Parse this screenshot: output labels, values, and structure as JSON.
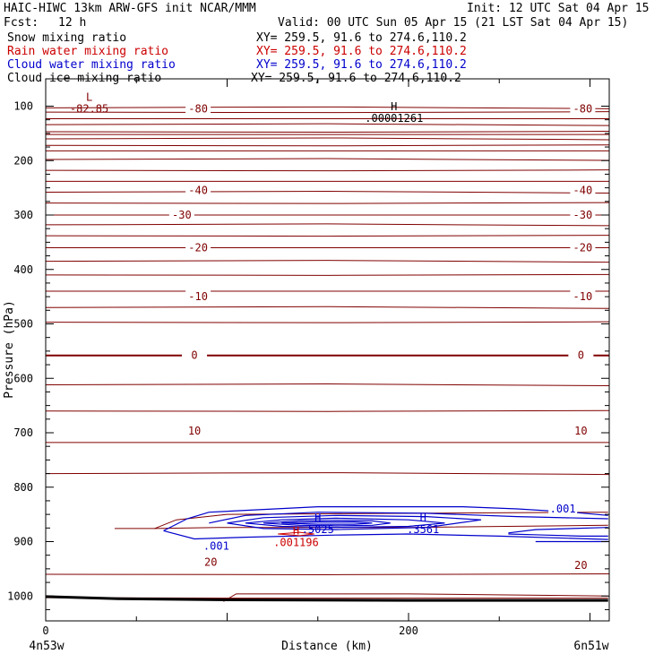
{
  "header": {
    "title": "HAIC-HIWC 13km ARW-GFS init   NCAR/MMM",
    "init": "Init: 12 UTC Sat 04 Apr 15",
    "fcst_label": "Fcst:",
    "fcst_value": "12 h",
    "valid": "Valid: 00 UTC Sun 05 Apr 15 (21 LST Sat 04 Apr 15)"
  },
  "legend": [
    {
      "label": "Snow mixing ratio",
      "xy": "XY= 259.5, 91.6 to 274.6,110.2",
      "color": "#000000"
    },
    {
      "label": "Rain water mixing ratio",
      "xy": "XY= 259.5, 91.6 to 274.6,110.2",
      "color": "#cc0000"
    },
    {
      "label": "Cloud water mixing ratio",
      "xy": "XY= 259.5, 91.6 to 274.6,110.2",
      "color": "#0000cc"
    },
    {
      "label": "Cloud ice mixing ratio",
      "xy": "XY= 259.5, 91.6 to 274.6,110.2",
      "color": "#000000"
    }
  ],
  "chart_data": {
    "type": "contour",
    "xlabel": "Distance (km)",
    "ylabel": "Pressure (hPa)",
    "xlim": [
      0,
      310
    ],
    "ylim": [
      1050,
      90
    ],
    "x_ticks": [
      0,
      200
    ],
    "y_ticks": [
      100,
      200,
      300,
      400,
      500,
      600,
      700,
      800,
      900,
      1000
    ],
    "x_endpoint_labels": [
      "4n53w",
      "6n51w"
    ],
    "isotherm_color": "#800000",
    "temperature_labels": [
      {
        "text": "-80",
        "x": 84,
        "p": 105
      },
      {
        "text": "-80",
        "x": 296,
        "p": 105
      },
      {
        "text": "-40",
        "x": 84,
        "p": 255
      },
      {
        "text": "-40",
        "x": 296,
        "p": 255
      },
      {
        "text": "-30",
        "x": 75,
        "p": 300
      },
      {
        "text": "-30",
        "x": 296,
        "p": 300
      },
      {
        "text": "-20",
        "x": 84,
        "p": 360
      },
      {
        "text": "-20",
        "x": 296,
        "p": 360
      },
      {
        "text": "-10",
        "x": 84,
        "p": 450
      },
      {
        "text": "-10",
        "x": 296,
        "p": 450
      },
      {
        "text": "0",
        "x": 82,
        "p": 558
      },
      {
        "text": "0",
        "x": 295,
        "p": 558
      },
      {
        "text": "10",
        "x": 82,
        "p": 697
      },
      {
        "text": "10",
        "x": 295,
        "p": 697
      },
      {
        "text": "20",
        "x": 91,
        "p": 938
      },
      {
        "text": "20",
        "x": 295,
        "p": 944
      }
    ],
    "extrema": [
      {
        "marker": "L",
        "value": "-82.85",
        "x": 24,
        "p": 95,
        "color": "#800000"
      },
      {
        "marker": "H",
        "value": ".00001261",
        "x": 192,
        "p": 112,
        "color": "#000000"
      },
      {
        "marker": "H",
        "value": ".5025",
        "x": 150,
        "p": 868,
        "color": "#0000cc"
      },
      {
        "marker": "H",
        "value": ".3561",
        "x": 208,
        "p": 868,
        "color": "#0000cc"
      },
      {
        "marker": "H",
        "value": ".001196",
        "x": 138,
        "p": 892,
        "color": "#cc0000"
      }
    ],
    "cloud_water_labels": [
      {
        "text": ".001",
        "x": 94,
        "p": 908
      },
      {
        "text": ".001",
        "x": 285,
        "p": 840
      }
    ]
  }
}
